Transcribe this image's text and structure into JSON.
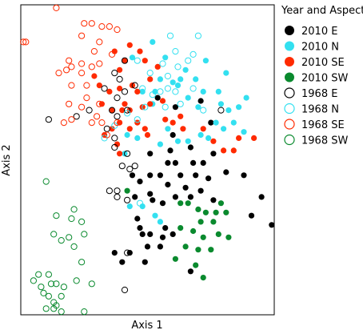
{
  "chart_data": {
    "type": "scatter",
    "title": "",
    "xlabel": "Axis 1",
    "ylabel": "Axis 2",
    "legend_title": "Year and Aspect",
    "legend_placement": "right",
    "grid": false,
    "ticks": false,
    "xlim": [
      0,
      100
    ],
    "ylim": [
      0,
      100
    ],
    "series": [
      {
        "name": "2010 E",
        "color": "#000000",
        "filled": true,
        "points": [
          [
            54,
            70
          ],
          [
            61,
            67
          ],
          [
            71,
            69
          ],
          [
            75,
            62
          ],
          [
            60,
            58
          ],
          [
            59,
            53
          ],
          [
            51,
            52
          ],
          [
            58,
            49
          ],
          [
            61,
            49
          ],
          [
            67,
            54
          ],
          [
            68,
            49
          ],
          [
            76,
            52
          ],
          [
            72,
            49
          ],
          [
            44,
            45
          ],
          [
            51,
            45
          ],
          [
            55,
            45
          ],
          [
            63,
            45
          ],
          [
            69,
            45
          ],
          [
            74,
            44
          ],
          [
            81,
            46
          ],
          [
            88,
            45
          ],
          [
            47,
            43
          ],
          [
            58,
            42
          ],
          [
            65,
            41
          ],
          [
            71,
            40
          ],
          [
            51,
            39
          ],
          [
            61,
            38
          ],
          [
            67,
            38
          ],
          [
            76,
            37
          ],
          [
            95,
            38
          ],
          [
            45,
            38
          ],
          [
            52,
            37
          ],
          [
            56,
            36
          ],
          [
            46,
            31
          ],
          [
            47,
            28
          ],
          [
            57,
            28
          ],
          [
            48,
            26
          ],
          [
            51,
            26
          ],
          [
            56,
            25
          ],
          [
            60,
            26
          ],
          [
            50,
            22
          ],
          [
            55,
            22
          ],
          [
            37,
            20
          ],
          [
            43,
            20
          ],
          [
            40,
            17
          ],
          [
            49,
            17
          ],
          [
            67,
            14
          ],
          [
            99,
            29
          ],
          [
            91,
            32
          ]
        ]
      },
      {
        "name": "2010 N",
        "color": "#33e0f0",
        "filled": true,
        "points": [
          [
            52,
            88
          ],
          [
            73,
            82
          ],
          [
            44,
            83
          ],
          [
            57,
            83
          ],
          [
            65,
            79
          ],
          [
            81,
            78
          ],
          [
            55,
            76
          ],
          [
            60,
            75
          ],
          [
            62,
            74
          ],
          [
            69,
            76
          ],
          [
            48,
            72
          ],
          [
            53,
            72
          ],
          [
            66,
            70
          ],
          [
            89,
            70
          ],
          [
            79,
            68
          ],
          [
            82,
            66
          ],
          [
            86,
            67
          ],
          [
            84,
            62
          ],
          [
            77,
            62
          ],
          [
            80,
            60
          ],
          [
            88,
            59
          ],
          [
            71,
            58
          ],
          [
            74,
            57
          ],
          [
            66,
            56
          ],
          [
            62,
            56
          ],
          [
            46,
            57
          ],
          [
            55,
            55
          ],
          [
            58,
            60
          ],
          [
            42,
            58
          ],
          [
            52,
            68
          ],
          [
            41,
            52
          ],
          [
            48,
            35
          ],
          [
            53,
            32
          ],
          [
            55,
            30
          ],
          [
            43,
            35
          ],
          [
            63,
            76
          ],
          [
            72,
            72
          ],
          [
            78,
            72
          ],
          [
            70,
            67
          ]
        ]
      },
      {
        "name": "2010 SE",
        "color": "#ff2a00",
        "filled": true,
        "points": [
          [
            43,
            87
          ],
          [
            47,
            85
          ],
          [
            37,
            85
          ],
          [
            41,
            82
          ],
          [
            49,
            82
          ],
          [
            39,
            79
          ],
          [
            54,
            80
          ],
          [
            29,
            77
          ],
          [
            31,
            74
          ],
          [
            35,
            72
          ],
          [
            39,
            73
          ],
          [
            44,
            74
          ],
          [
            51,
            76
          ],
          [
            46,
            72
          ],
          [
            32,
            68
          ],
          [
            41,
            68
          ],
          [
            36,
            66
          ],
          [
            40,
            66
          ],
          [
            43,
            66
          ],
          [
            48,
            67
          ],
          [
            51,
            68
          ],
          [
            56,
            69
          ],
          [
            39,
            62
          ],
          [
            43,
            60
          ],
          [
            46,
            62
          ],
          [
            49,
            60
          ],
          [
            57,
            63
          ],
          [
            60,
            62
          ],
          [
            64,
            60
          ],
          [
            72,
            60
          ],
          [
            76,
            56
          ],
          [
            80,
            53
          ],
          [
            92,
            57
          ],
          [
            84,
            53
          ],
          [
            86,
            57
          ],
          [
            33,
            58
          ],
          [
            38,
            55
          ],
          [
            39,
            52
          ],
          [
            36,
            60
          ],
          [
            50,
            58
          ],
          [
            63,
            64
          ]
        ]
      },
      {
        "name": "2010 SW",
        "color": "#0a8a2e",
        "filled": true,
        "points": [
          [
            42,
            40
          ],
          [
            63,
            36
          ],
          [
            66,
            36
          ],
          [
            70,
            34
          ],
          [
            73,
            33
          ],
          [
            77,
            33
          ],
          [
            79,
            36
          ],
          [
            81,
            33
          ],
          [
            71,
            30
          ],
          [
            76,
            30
          ],
          [
            63,
            28
          ],
          [
            68,
            27
          ],
          [
            72,
            25
          ],
          [
            78,
            26
          ],
          [
            82,
            25
          ],
          [
            65,
            22
          ],
          [
            70,
            21
          ],
          [
            75,
            21
          ],
          [
            61,
            18
          ],
          [
            69,
            16
          ],
          [
            72,
            12
          ]
        ]
      },
      {
        "name": "1968 E",
        "color": "#000000",
        "filled": false,
        "points": [
          [
            41,
            82
          ],
          [
            37,
            78
          ],
          [
            39,
            76
          ],
          [
            33,
            73
          ],
          [
            38,
            70
          ],
          [
            41,
            72
          ],
          [
            45,
            74
          ],
          [
            42,
            66
          ],
          [
            38,
            64
          ],
          [
            36,
            66
          ],
          [
            11,
            63
          ],
          [
            27,
            66
          ],
          [
            22,
            64
          ],
          [
            34,
            60
          ],
          [
            37,
            57
          ],
          [
            37,
            54
          ],
          [
            42,
            52
          ],
          [
            40,
            48
          ],
          [
            43,
            47
          ],
          [
            45,
            48
          ],
          [
            35,
            40
          ],
          [
            38,
            40
          ],
          [
            42,
            37
          ],
          [
            38,
            38
          ],
          [
            79,
            66
          ],
          [
            42,
            20
          ],
          [
            41,
            8
          ]
        ]
      },
      {
        "name": "1968 N",
        "color": "#33e0f0",
        "filled": false,
        "points": [
          [
            59,
            90
          ],
          [
            70,
            90
          ],
          [
            61,
            85
          ],
          [
            68,
            84
          ],
          [
            66,
            82
          ],
          [
            56,
            81
          ],
          [
            62,
            80
          ],
          [
            46,
            82
          ],
          [
            51,
            78
          ],
          [
            58,
            77
          ],
          [
            68,
            73
          ],
          [
            58,
            73
          ],
          [
            55,
            72
          ],
          [
            52,
            71
          ],
          [
            61,
            72
          ],
          [
            48,
            73
          ],
          [
            49,
            67
          ],
          [
            57,
            67
          ],
          [
            63,
            68
          ],
          [
            72,
            66
          ],
          [
            46,
            63
          ],
          [
            42,
            65
          ],
          [
            37,
            61
          ],
          [
            47,
            36
          ],
          [
            33,
            57
          ]
        ]
      },
      {
        "name": "1968 SE",
        "color": "#ff2a00",
        "filled": false,
        "points": [
          [
            14,
            99
          ],
          [
            25,
            94
          ],
          [
            28,
            94
          ],
          [
            32,
            93
          ],
          [
            35,
            93
          ],
          [
            38,
            92
          ],
          [
            24,
            90
          ],
          [
            31,
            88
          ],
          [
            29,
            85
          ],
          [
            36,
            84
          ],
          [
            31,
            81
          ],
          [
            19,
            82
          ],
          [
            24,
            81
          ],
          [
            28,
            80
          ],
          [
            15,
            78
          ],
          [
            18,
            79
          ],
          [
            20,
            80
          ],
          [
            24,
            78
          ],
          [
            20,
            74
          ],
          [
            26,
            74
          ],
          [
            1,
            88
          ],
          [
            2,
            88
          ],
          [
            19,
            68
          ],
          [
            20,
            63
          ],
          [
            24,
            67
          ],
          [
            30,
            64
          ],
          [
            28,
            62
          ],
          [
            32,
            62
          ],
          [
            17,
            62
          ],
          [
            31,
            68
          ],
          [
            34,
            58
          ],
          [
            38,
            62
          ],
          [
            26,
            70
          ]
        ]
      },
      {
        "name": "1968 SW",
        "color": "#0a8a2e",
        "filled": false,
        "points": [
          [
            10,
            43
          ],
          [
            14,
            32
          ],
          [
            21,
            34
          ],
          [
            20,
            31
          ],
          [
            24,
            30
          ],
          [
            19,
            25
          ],
          [
            13,
            26
          ],
          [
            16,
            24
          ],
          [
            21,
            22
          ],
          [
            25,
            26
          ],
          [
            24,
            17
          ],
          [
            7,
            13
          ],
          [
            11,
            13
          ],
          [
            5,
            11
          ],
          [
            8,
            9
          ],
          [
            12,
            10
          ],
          [
            14,
            10
          ],
          [
            17,
            9
          ],
          [
            22,
            11
          ],
          [
            28,
            10
          ],
          [
            9,
            7
          ],
          [
            11,
            6
          ],
          [
            16,
            6
          ],
          [
            13,
            4
          ],
          [
            14,
            3
          ],
          [
            10,
            2
          ],
          [
            16,
            1
          ],
          [
            25,
            1
          ],
          [
            13,
            2
          ]
        ]
      }
    ]
  }
}
